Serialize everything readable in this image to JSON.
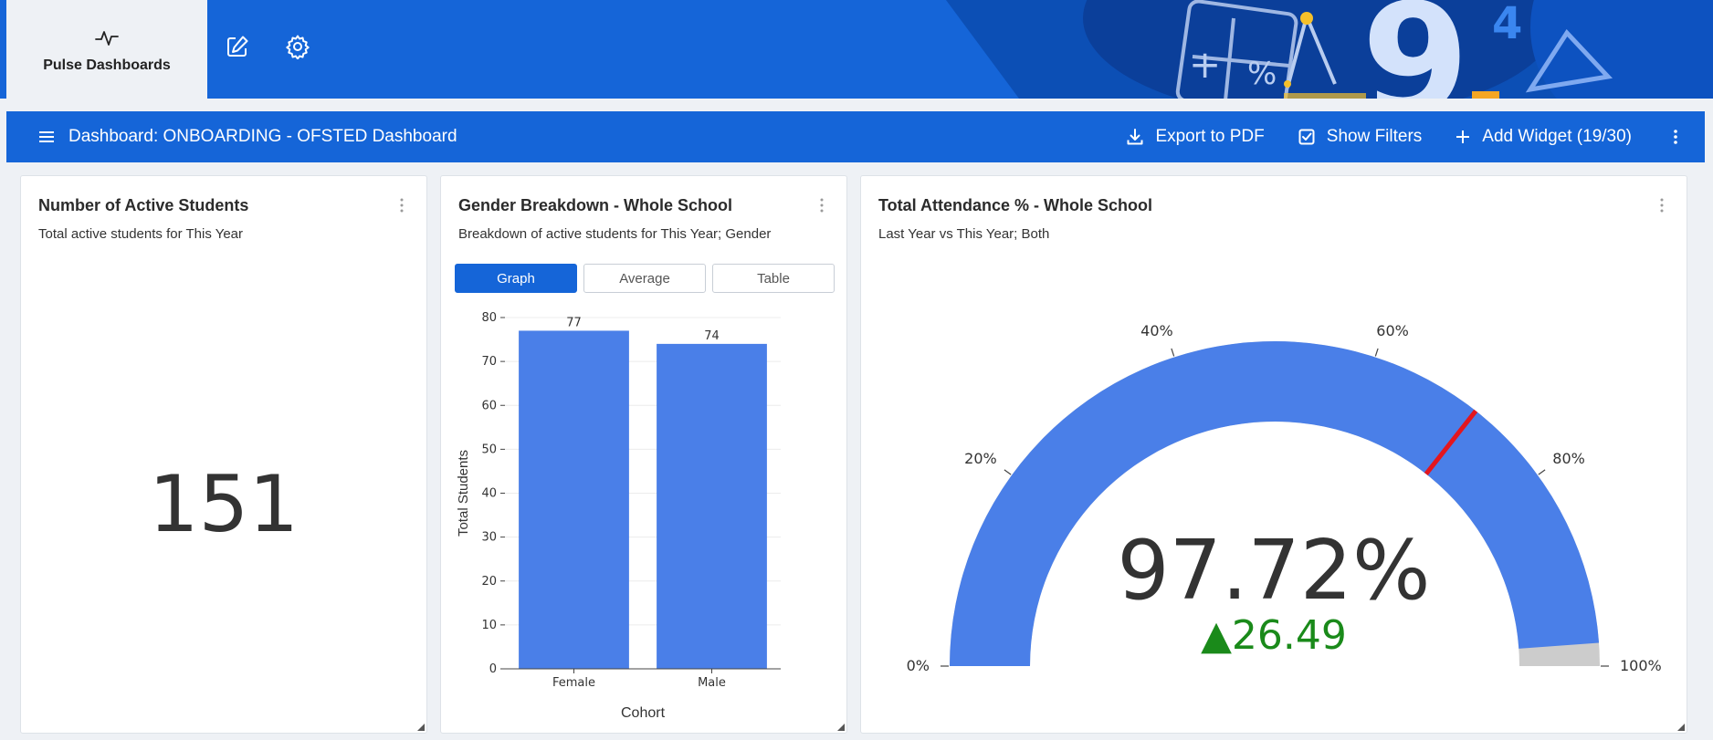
{
  "app": {
    "brand_label": "Pulse Dashboards",
    "accent": "#1565d8"
  },
  "toolbar": {
    "dashboard_title": "Dashboard: ONBOARDING - OFSTED Dashboard",
    "export_label": "Export to PDF",
    "filters_label": "Show Filters",
    "add_widget_label": "Add Widget (19/30)"
  },
  "widgets": {
    "active_students": {
      "title": "Number of Active Students",
      "subtitle": "Total active students for This Year",
      "value": "151"
    },
    "gender": {
      "title": "Gender Breakdown - Whole School",
      "subtitle": "Breakdown of active students for This Year; Gender",
      "tabs": [
        "Graph",
        "Average",
        "Table"
      ],
      "active_tab": "Graph"
    },
    "attendance": {
      "title": "Total Attendance % - Whole School",
      "subtitle": "Last Year vs This Year; Both",
      "value_label": "97.72%",
      "delta_label": "▲26.49"
    }
  },
  "chart_data": [
    {
      "type": "bar",
      "categories": [
        "Female",
        "Male"
      ],
      "values": [
        77,
        74
      ],
      "data_labels": [
        "77",
        "74"
      ],
      "xlabel": "Cohort",
      "ylabel": "Total Students",
      "ylim": [
        0,
        80
      ],
      "yticks": [
        0,
        10,
        20,
        30,
        40,
        50,
        60,
        70,
        80
      ],
      "bar_color": "#4a7fe8",
      "grid": true
    },
    {
      "type": "gauge",
      "value": 97.72,
      "reference": 71.23,
      "delta": 26.49,
      "range": [
        0,
        100
      ],
      "tick_labels": [
        "0%",
        "20%",
        "40%",
        "60%",
        "80%",
        "100%"
      ],
      "ticks": [
        0,
        20,
        40,
        60,
        80,
        100
      ],
      "bar_color": "#4a7fe8",
      "track_color": "#cccccc",
      "threshold_color": "#e3161e",
      "delta_color": "#1a8a1a"
    }
  ]
}
